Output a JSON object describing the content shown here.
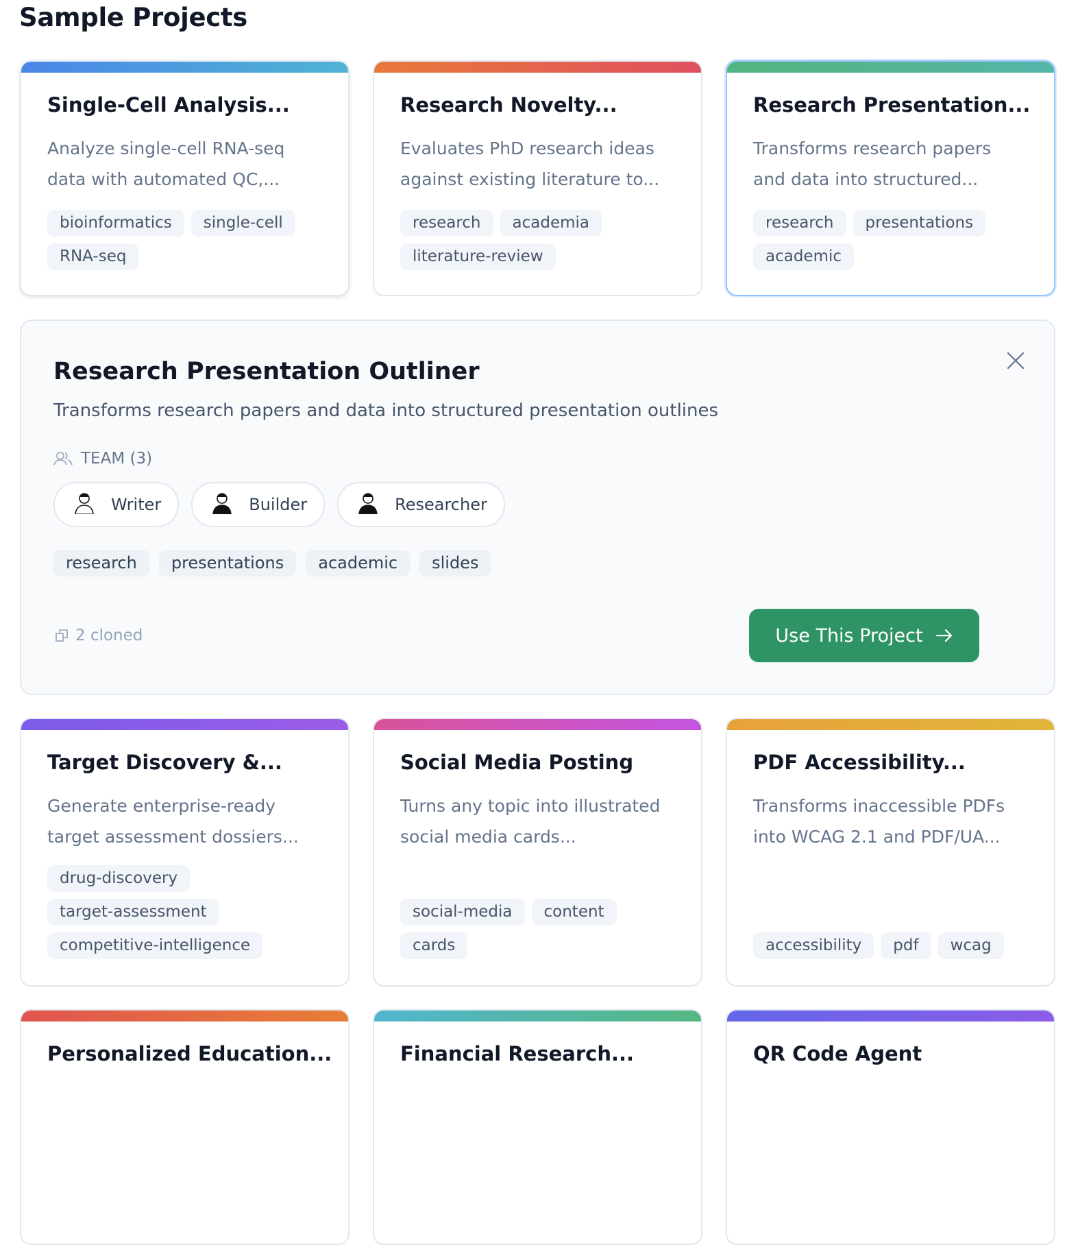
{
  "heading": "Sample Projects",
  "cards_row1": [
    {
      "title": "Single-Cell Analysis...",
      "description": "Analyze single-cell RNA-seq data with automated QC,...",
      "tags": [
        "bioinformatics",
        "single-cell",
        "RNA-seq"
      ],
      "gradient": [
        "#4a86e8",
        "#4fb3d4"
      ]
    },
    {
      "title": "Research Novelty...",
      "description": "Evaluates PhD research ideas against existing literature to...",
      "tags": [
        "research",
        "academia",
        "literature-review"
      ],
      "gradient": [
        "#e8793a",
        "#e05060"
      ]
    },
    {
      "title": "Research Presentation...",
      "description": "Transforms research papers and data into structured...",
      "tags": [
        "research",
        "presentations",
        "academic"
      ],
      "gradient": [
        "#52b57e",
        "#55b5a8"
      ],
      "selected": true
    }
  ],
  "detail": {
    "title": "Research Presentation Outliner",
    "description": "Transforms research papers and data into structured presentation outlines",
    "team_label": "TEAM (3)",
    "members": [
      {
        "name": "Writer",
        "avatar": "writer-avatar"
      },
      {
        "name": "Builder",
        "avatar": "builder-avatar"
      },
      {
        "name": "Researcher",
        "avatar": "researcher-avatar"
      }
    ],
    "tags": [
      "research",
      "presentations",
      "academic",
      "slides"
    ],
    "cloned": "2 cloned",
    "use_button": "Use This Project",
    "accent": "#2e9466"
  },
  "cards_row2": [
    {
      "title": "Target Discovery &...",
      "description": "Generate enterprise-ready target assessment dossiers...",
      "tags": [
        "drug-discovery",
        "target-assessment",
        "competitive-intelligence"
      ],
      "gradient": [
        "#7b5ce8",
        "#9b5ce8"
      ]
    },
    {
      "title": "Social Media Posting",
      "description": "Turns any topic into illustrated social media cards...",
      "tags": [
        "social-media",
        "content",
        "cards"
      ],
      "gradient": [
        "#d9539a",
        "#c355e0"
      ]
    },
    {
      "title": "PDF Accessibility...",
      "description": "Transforms inaccessible PDFs into WCAG 2.1 and PDF/UA...",
      "tags": [
        "accessibility",
        "pdf",
        "wcag"
      ],
      "gradient": [
        "#e8a23a",
        "#e0b53a"
      ]
    }
  ],
  "cards_row3": [
    {
      "title": "Personalized Education...",
      "gradient": [
        "#e05550",
        "#e87e35"
      ]
    },
    {
      "title": "Financial Research...",
      "gradient": [
        "#52b5cf",
        "#55b880"
      ]
    },
    {
      "title": "QR Code Agent",
      "gradient": [
        "#6366e8",
        "#8b5ce8"
      ]
    }
  ]
}
